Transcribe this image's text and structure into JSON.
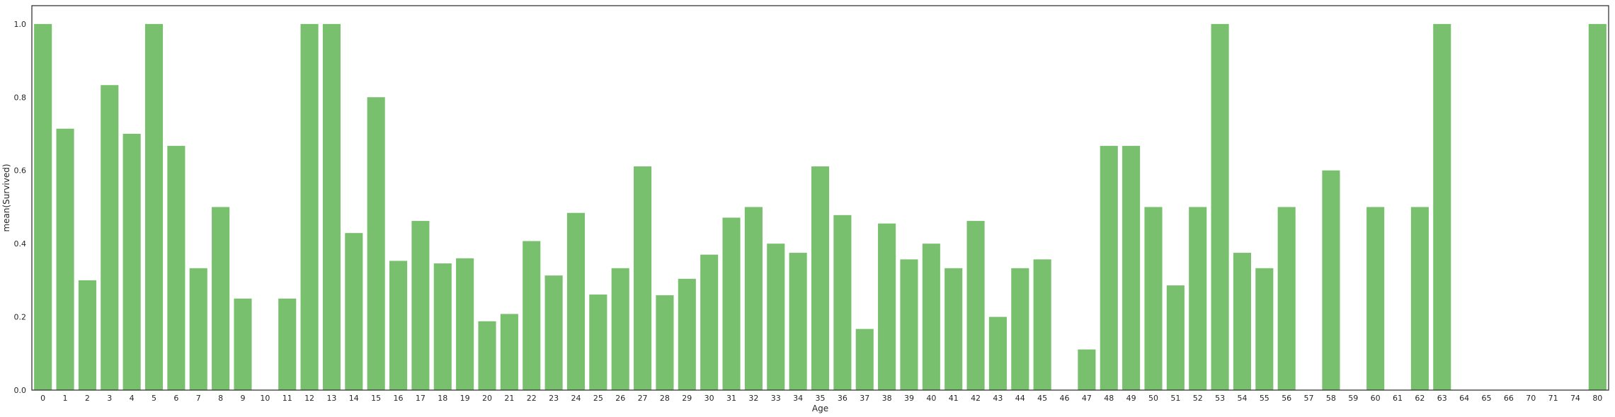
{
  "chart_data": {
    "type": "bar",
    "xlabel": "Age",
    "ylabel": "mean(Survived)",
    "ylim": [
      0,
      1.05
    ],
    "yticks": [
      "0.0",
      "0.2",
      "0.4",
      "0.6",
      "0.8",
      "1.0"
    ],
    "ytick_values": [
      0,
      0.2,
      0.4,
      0.6,
      0.8,
      1.0
    ],
    "grid": false,
    "bar_color": "#78c06e",
    "categories": [
      "0",
      "1",
      "2",
      "3",
      "4",
      "5",
      "6",
      "7",
      "8",
      "9",
      "10",
      "11",
      "12",
      "13",
      "14",
      "15",
      "16",
      "17",
      "18",
      "19",
      "20",
      "21",
      "22",
      "23",
      "24",
      "25",
      "26",
      "27",
      "28",
      "29",
      "30",
      "31",
      "32",
      "33",
      "34",
      "35",
      "36",
      "37",
      "38",
      "39",
      "40",
      "41",
      "42",
      "43",
      "44",
      "45",
      "46",
      "47",
      "48",
      "49",
      "50",
      "51",
      "52",
      "53",
      "54",
      "55",
      "56",
      "57",
      "58",
      "59",
      "60",
      "61",
      "62",
      "63",
      "64",
      "65",
      "66",
      "70",
      "71",
      "74",
      "80"
    ],
    "values": [
      1.0,
      0.714,
      0.3,
      0.833,
      0.7,
      1.0,
      0.667,
      0.333,
      0.5,
      0.25,
      0.0,
      0.25,
      1.0,
      1.0,
      0.429,
      0.8,
      0.353,
      0.462,
      0.346,
      0.36,
      0.188,
      0.208,
      0.407,
      0.313,
      0.484,
      0.261,
      0.333,
      0.611,
      0.259,
      0.304,
      0.37,
      0.471,
      0.5,
      0.4,
      0.375,
      0.611,
      0.478,
      0.167,
      0.455,
      0.357,
      0.4,
      0.333,
      0.462,
      0.2,
      0.333,
      0.357,
      0.0,
      0.111,
      0.667,
      0.667,
      0.5,
      0.286,
      0.5,
      1.0,
      0.375,
      0.333,
      0.5,
      0.0,
      0.6,
      0.0,
      0.5,
      0.0,
      0.5,
      1.0,
      0.0,
      0.0,
      0.0,
      0.0,
      0.0,
      0.0,
      1.0
    ]
  }
}
